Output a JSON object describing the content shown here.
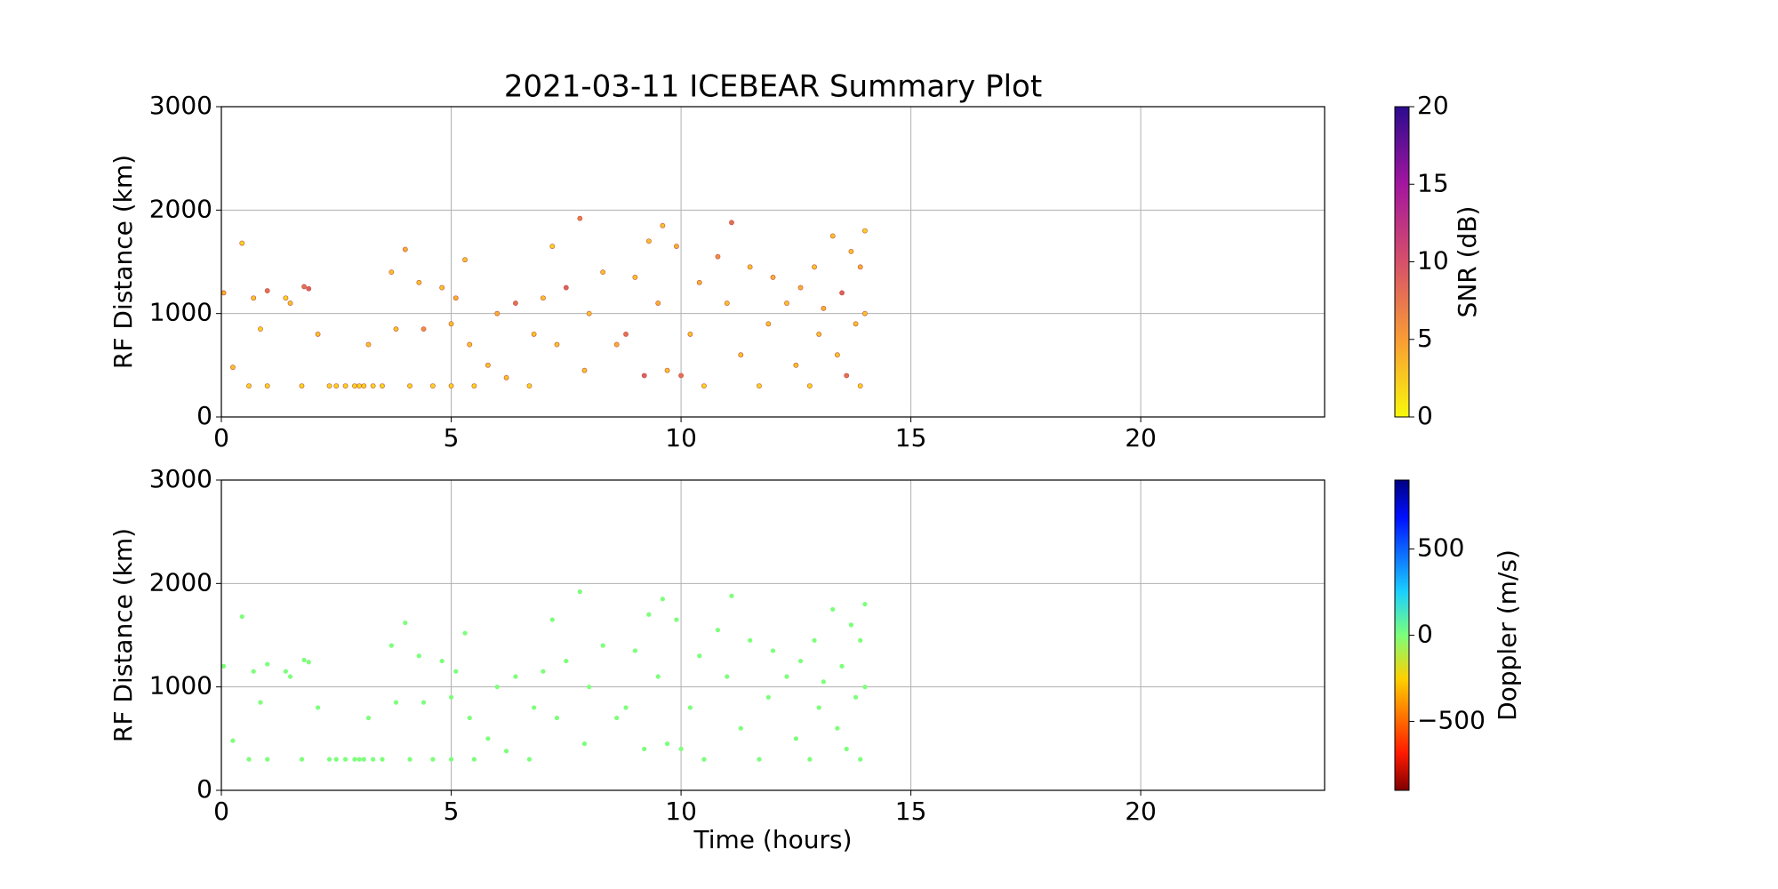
{
  "chart_data": [
    {
      "type": "scatter",
      "title": "2021-03-11 ICEBEAR Summary Plot",
      "y_label": "RF Distance (km)",
      "colorbar_label": "SNR (dB)",
      "xlim": [
        0,
        24
      ],
      "xticks": [
        0,
        5,
        10,
        15,
        20
      ],
      "ylim": [
        0,
        3000
      ],
      "yticks": [
        0,
        1000,
        2000,
        3000
      ],
      "grid": true,
      "clim": [
        0,
        20
      ],
      "cticks": [
        0,
        5,
        10,
        15,
        20
      ],
      "x": [
        0.05,
        0.25,
        0.45,
        0.6,
        0.7,
        0.85,
        1.0,
        1.0,
        1.4,
        1.5,
        1.75,
        1.8,
        1.9,
        2.1,
        2.35,
        2.5,
        2.7,
        2.9,
        3.0,
        3.1,
        3.2,
        3.3,
        3.5,
        3.7,
        3.8,
        4.0,
        4.1,
        4.3,
        4.4,
        4.6,
        4.8,
        5.0,
        5.0,
        5.1,
        5.3,
        5.4,
        5.5,
        5.8,
        6.0,
        6.2,
        6.4,
        6.7,
        6.8,
        7.0,
        7.2,
        7.3,
        7.5,
        7.8,
        7.9,
        8.0,
        8.3,
        8.6,
        8.8,
        9.0,
        9.2,
        9.3,
        9.5,
        9.6,
        9.7,
        9.9,
        10.0,
        10.2,
        10.4,
        10.5,
        10.8,
        11.0,
        11.1,
        11.3,
        11.5,
        11.7,
        11.9,
        12.0,
        12.3,
        12.5,
        12.6,
        12.8,
        12.9,
        13.0,
        13.1,
        13.3,
        13.4,
        13.5,
        13.6,
        13.7,
        13.8,
        13.9,
        13.9,
        14.0,
        14.0
      ],
      "y": [
        1200,
        480,
        1680,
        300,
        1150,
        850,
        1220,
        300,
        1150,
        1100,
        300,
        1260,
        1240,
        800,
        300,
        300,
        300,
        300,
        300,
        300,
        700,
        300,
        300,
        1400,
        850,
        1620,
        300,
        1300,
        850,
        300,
        1250,
        900,
        300,
        1150,
        1520,
        700,
        300,
        500,
        1000,
        380,
        1100,
        300,
        800,
        1150,
        1650,
        700,
        1250,
        1920,
        450,
        1000,
        1400,
        700,
        800,
        1350,
        400,
        1700,
        1100,
        1850,
        450,
        1650,
        400,
        800,
        1300,
        300,
        1550,
        1100,
        1880,
        600,
        1450,
        300,
        900,
        1350,
        1100,
        500,
        1250,
        300,
        1450,
        800,
        1050,
        1750,
        600,
        1200,
        400,
        1600,
        900,
        1450,
        300,
        1000,
        1800
      ],
      "c": [
        4,
        3,
        2,
        2,
        3,
        2,
        8,
        2,
        2,
        3,
        2,
        8,
        9,
        3,
        2,
        2,
        2,
        2,
        2,
        2,
        3,
        2,
        2,
        3,
        3,
        4,
        2,
        3,
        6,
        2,
        3,
        3,
        2,
        4,
        3,
        3,
        2,
        3,
        4,
        3,
        8,
        2,
        3,
        3,
        2,
        3,
        9,
        7,
        3,
        3,
        3,
        4,
        8,
        3,
        9,
        3,
        4,
        3,
        3,
        4,
        8,
        3,
        4,
        2,
        6,
        3,
        8,
        3,
        3,
        2,
        3,
        4,
        3,
        3,
        4,
        2,
        3,
        3,
        4,
        3,
        3,
        9,
        8,
        3,
        3,
        4,
        2,
        3,
        2
      ]
    },
    {
      "type": "scatter",
      "x_label": "Time (hours)",
      "y_label": "RF Distance (km)",
      "colorbar_label": "Doppler (m/s)",
      "xlim": [
        0,
        24
      ],
      "xticks": [
        0,
        5,
        10,
        15,
        20
      ],
      "ylim": [
        0,
        3000
      ],
      "yticks": [
        0,
        1000,
        2000,
        3000
      ],
      "grid": true,
      "clim": [
        -900,
        900
      ],
      "cticks": [
        {
          "value": -500,
          "label": "−500"
        },
        0,
        500
      ],
      "color": "#7cff7a",
      "x": [
        0.05,
        0.25,
        0.45,
        0.6,
        0.7,
        0.85,
        1.0,
        1.0,
        1.4,
        1.5,
        1.75,
        1.8,
        1.9,
        2.1,
        2.35,
        2.5,
        2.7,
        2.9,
        3.0,
        3.1,
        3.2,
        3.3,
        3.5,
        3.7,
        3.8,
        4.0,
        4.1,
        4.3,
        4.4,
        4.6,
        4.8,
        5.0,
        5.0,
        5.1,
        5.3,
        5.4,
        5.5,
        5.8,
        6.0,
        6.2,
        6.4,
        6.7,
        6.8,
        7.0,
        7.2,
        7.3,
        7.5,
        7.8,
        7.9,
        8.0,
        8.3,
        8.6,
        8.8,
        9.0,
        9.2,
        9.3,
        9.5,
        9.6,
        9.7,
        9.9,
        10.0,
        10.2,
        10.4,
        10.5,
        10.8,
        11.0,
        11.1,
        11.3,
        11.5,
        11.7,
        11.9,
        12.0,
        12.3,
        12.5,
        12.6,
        12.8,
        12.9,
        13.0,
        13.1,
        13.3,
        13.4,
        13.5,
        13.6,
        13.7,
        13.8,
        13.9,
        13.9,
        14.0,
        14.0
      ],
      "y": [
        1200,
        480,
        1680,
        300,
        1150,
        850,
        1220,
        300,
        1150,
        1100,
        300,
        1260,
        1240,
        800,
        300,
        300,
        300,
        300,
        300,
        300,
        700,
        300,
        300,
        1400,
        850,
        1620,
        300,
        1300,
        850,
        300,
        1250,
        900,
        300,
        1150,
        1520,
        700,
        300,
        500,
        1000,
        380,
        1100,
        300,
        800,
        1150,
        1650,
        700,
        1250,
        1920,
        450,
        1000,
        1400,
        700,
        800,
        1350,
        400,
        1700,
        1100,
        1850,
        450,
        1650,
        400,
        800,
        1300,
        300,
        1550,
        1100,
        1880,
        600,
        1450,
        300,
        900,
        1350,
        1100,
        500,
        1250,
        300,
        1450,
        800,
        1050,
        1750,
        600,
        1200,
        400,
        1600,
        900,
        1450,
        300,
        1000,
        1800
      ]
    }
  ]
}
